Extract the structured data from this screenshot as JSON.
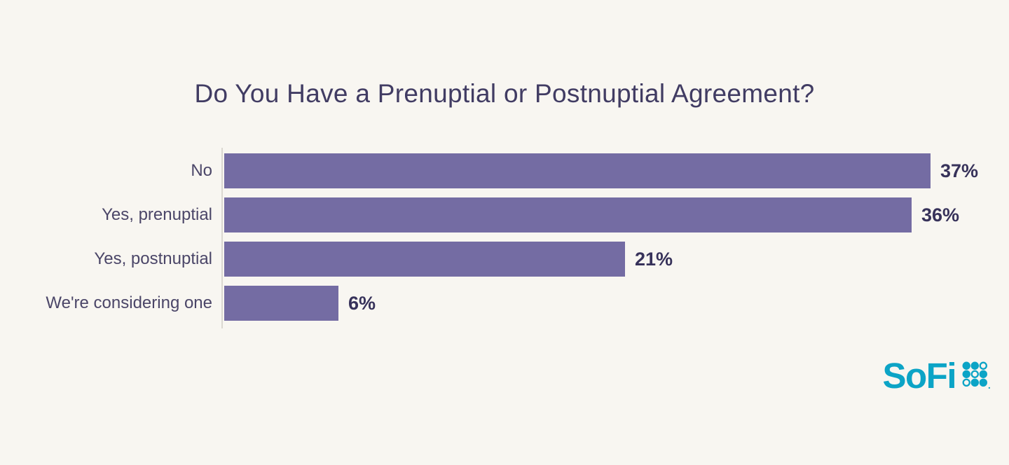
{
  "page": {
    "background_color": "#F8F6F1"
  },
  "chart_data": {
    "type": "bar",
    "orientation": "horizontal",
    "title": "Do You Have a Prenuptial or Postnuptial Agreement?",
    "categories": [
      "No",
      "Yes, prenuptial",
      "Yes, postnuptial",
      "We're considering one"
    ],
    "values": [
      37,
      36,
      21,
      6
    ],
    "value_labels": [
      "37%",
      "36%",
      "21%",
      "6%"
    ],
    "xlabel": "",
    "ylabel": "",
    "xlim": [
      0,
      38
    ],
    "grid": false,
    "legend": "none",
    "title_color": "#413C63",
    "bar_color": "#746CA3",
    "value_label_color": "#37325A",
    "category_label_color": "#4B4668",
    "axis_line_color": "#DBD8D1"
  },
  "branding": {
    "logo_text": "SoFi",
    "logo_color": "#0CA4C6",
    "logo_mark": "sofi-dots-grid-icon"
  }
}
